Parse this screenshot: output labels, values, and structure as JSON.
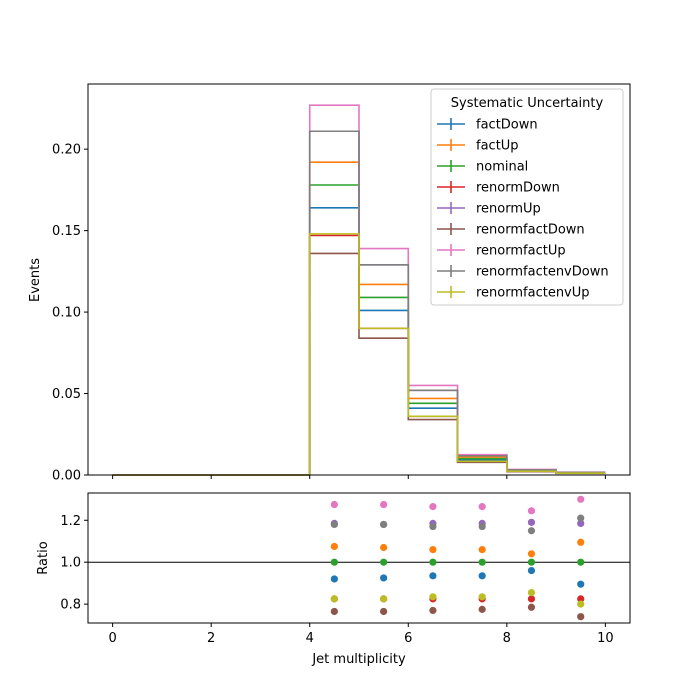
{
  "chart_data": {
    "type": "line",
    "xlabel": "Jet multiplicity",
    "x_ticks": [
      "0",
      "2",
      "4",
      "6",
      "8",
      "10"
    ],
    "xlim": [
      -0.5,
      10.5
    ],
    "bin_edges": [
      0,
      1,
      2,
      3,
      4,
      5,
      6,
      7,
      8,
      9,
      10
    ],
    "top": {
      "ylabel": "Events",
      "ylim": [
        0,
        0.24
      ],
      "y_ticks": [
        "0.00",
        "0.05",
        "0.10",
        "0.15",
        "0.20"
      ]
    },
    "ratio": {
      "ylabel": "Ratio",
      "ylim": [
        0.71,
        1.33
      ],
      "y_ticks": [
        "0.8",
        "1.0",
        "1.2"
      ],
      "reference_line": 1.0,
      "x_centers": [
        4.5,
        5.5,
        6.5,
        7.5,
        8.5,
        9.5
      ]
    },
    "legend": {
      "title": "Systematic Uncertainty",
      "placement": "top-right"
    },
    "series": [
      {
        "name": "factDown",
        "color": "#1f77b4",
        "values": [
          0,
          0,
          0,
          0,
          0.164,
          0.101,
          0.041,
          0.009,
          0.0025,
          0.0012
        ],
        "ratio": [
          0.92,
          0.925,
          0.935,
          0.935,
          0.96,
          0.895
        ]
      },
      {
        "name": "factUp",
        "color": "#ff7f0e",
        "values": [
          0,
          0,
          0,
          0,
          0.192,
          0.117,
          0.047,
          0.011,
          0.0028,
          0.0014
        ],
        "ratio": [
          1.075,
          1.07,
          1.06,
          1.06,
          1.04,
          1.095
        ]
      },
      {
        "name": "nominal",
        "color": "#2ca02c",
        "values": [
          0,
          0,
          0,
          0,
          0.178,
          0.109,
          0.044,
          0.01,
          0.0027,
          0.0013
        ],
        "ratio": [
          1.0,
          1.0,
          1.0,
          1.0,
          1.0,
          1.0
        ]
      },
      {
        "name": "renormDown",
        "color": "#d62728",
        "values": [
          0,
          0,
          0,
          0,
          0.147,
          0.09,
          0.036,
          0.0083,
          0.0022,
          0.0011
        ],
        "ratio": [
          0.825,
          0.825,
          0.825,
          0.825,
          0.825,
          0.825
        ]
      },
      {
        "name": "renormUp",
        "color": "#9467bd",
        "values": [
          0,
          0,
          0,
          0,
          0.211,
          0.129,
          0.052,
          0.012,
          0.0032,
          0.0015
        ],
        "ratio": [
          1.185,
          1.18,
          1.185,
          1.185,
          1.19,
          1.185
        ]
      },
      {
        "name": "renormfactDown",
        "color": "#8c564b",
        "values": [
          0,
          0,
          0,
          0,
          0.136,
          0.084,
          0.034,
          0.0078,
          0.0021,
          0.001
        ],
        "ratio": [
          0.765,
          0.765,
          0.77,
          0.775,
          0.785,
          0.74
        ]
      },
      {
        "name": "renormfactUp",
        "color": "#e377c2",
        "values": [
          0,
          0,
          0,
          0,
          0.227,
          0.139,
          0.055,
          0.0125,
          0.0034,
          0.0017
        ],
        "ratio": [
          1.275,
          1.275,
          1.265,
          1.265,
          1.245,
          1.3
        ]
      },
      {
        "name": "renormfactenvDown",
        "color": "#7f7f7f",
        "values": [
          0,
          0,
          0,
          0,
          0.211,
          0.129,
          0.052,
          0.0118,
          0.0031,
          0.0016
        ],
        "ratio": [
          1.18,
          1.18,
          1.17,
          1.17,
          1.15,
          1.21
        ]
      },
      {
        "name": "renormfactenvUp",
        "color": "#bcbd22",
        "values": [
          0,
          0,
          0,
          0,
          0.148,
          0.09,
          0.036,
          0.0084,
          0.0023,
          0.0011
        ],
        "ratio": [
          0.825,
          0.825,
          0.835,
          0.835,
          0.855,
          0.8
        ]
      }
    ]
  }
}
